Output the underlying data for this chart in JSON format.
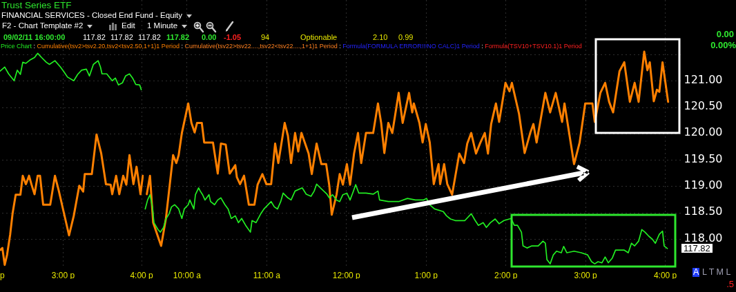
{
  "chart_data": [
    {
      "type": "line",
      "title": "Trust Series ETF",
      "subtitle": "FINANCIAL SERVICES - Closed End Fund - Equity",
      "xlim": [
        14.2,
        16.03
      ],
      "ylim": [
        117.44,
        122.53
      ],
      "xticks": [
        {
          "value": 15,
          "label": "3:00 p"
        },
        {
          "value": 16,
          "label": "4:00 p"
        }
      ],
      "yticks": [
        {
          "value": 118,
          "label": null
        },
        {
          "value": 118.5,
          "label": null
        },
        {
          "value": 119,
          "label": null
        },
        {
          "value": 119.5,
          "label": null
        },
        {
          "value": 120,
          "label": null
        },
        {
          "value": 120.5,
          "label": null
        },
        {
          "value": 121,
          "label": null
        },
        {
          "value": 121.5,
          "label": null
        }
      ],
      "tick_labels": "x",
      "grid": true,
      "series": [
        {
          "color": "#22ee22",
          "x": [
            14.2,
            14.26,
            14.31,
            14.38,
            14.42,
            14.46,
            14.49,
            14.53,
            14.58,
            14.64,
            14.68,
            14.73,
            14.79,
            14.83,
            14.9,
            14.97,
            15.01,
            15.06,
            15.14,
            15.19,
            15.24,
            15.3,
            15.34,
            15.39,
            15.45,
            15.48,
            15.5,
            15.56,
            15.63,
            15.67,
            15.71,
            15.76,
            15.8,
            15.85,
            15.89,
            15.93,
            15.98,
            16.0
          ],
          "values": [
            121.18,
            121.26,
            121.13,
            121.0,
            121.2,
            121.12,
            121.35,
            121.33,
            121.39,
            121.44,
            121.52,
            121.44,
            121.35,
            121.31,
            121.38,
            121.26,
            121.18,
            121.07,
            121.0,
            121.12,
            121.2,
            121.22,
            121.09,
            121.31,
            121.38,
            121.26,
            121.13,
            121.13,
            121.0,
            121.05,
            120.92,
            120.96,
            121.09,
            121.13,
            121.05,
            120.93,
            120.92,
            120.83
          ]
        },
        {
          "color": "#ff8000",
          "x": [
            14.2,
            14.23,
            14.26,
            14.29,
            14.33,
            14.36,
            14.4,
            14.46,
            14.49,
            14.53,
            14.57,
            14.6,
            14.64,
            14.68,
            14.71,
            14.75,
            14.84,
            14.9,
            14.95,
            14.99,
            15.08,
            15.14,
            15.21,
            15.26,
            15.28,
            15.37,
            15.43,
            15.49,
            15.55,
            15.61,
            15.63,
            15.68,
            15.72,
            15.77,
            15.81,
            15.85,
            15.9,
            15.94,
            15.99,
            16.02
          ],
          "values": [
            117.79,
            117.83,
            117.51,
            117.7,
            118.09,
            118.48,
            118.84,
            118.84,
            119.2,
            119.04,
            119.2,
            119.04,
            118.85,
            119.2,
            119.2,
            118.65,
            118.65,
            119.2,
            118.91,
            118.65,
            118.07,
            118.44,
            119.01,
            118.9,
            119.23,
            119.23,
            119.98,
            119.62,
            119.04,
            119.03,
            118.85,
            119.2,
            118.85,
            119.2,
            119.03,
            119.59,
            119.04,
            119.37,
            118.85,
            119.2
          ]
        }
      ]
    },
    {
      "type": "line",
      "xlim": [
        9.46,
        16.19
      ],
      "ylim": [
        117.44,
        122.53
      ],
      "xticks": [
        {
          "value": 10,
          "label": "10:00 a"
        },
        {
          "value": 11,
          "label": "11:00 a"
        },
        {
          "value": 12,
          "label": "12:00 p"
        },
        {
          "value": 13,
          "label": "1:00 p"
        },
        {
          "value": 14,
          "label": "2:00 p"
        },
        {
          "value": 15,
          "label": "3:00 p"
        },
        {
          "value": 16,
          "label": "4:00 p"
        }
      ],
      "yticks": [
        {
          "value": 118,
          "label": "118.00"
        },
        {
          "value": 118.5,
          "label": "118.50"
        },
        {
          "value": 119,
          "label": "119.00"
        },
        {
          "value": 119.5,
          "label": "119.50"
        },
        {
          "value": 120,
          "label": "120.00"
        },
        {
          "value": 120.5,
          "label": "120.50"
        },
        {
          "value": 121,
          "label": "121.00"
        },
        {
          "value": 121.5,
          "label": null
        }
      ],
      "grid": true,
      "legend": "top left",
      "series": [
        {
          "name": "Price Chart",
          "color": "#22ee22",
          "x": [
            9.48,
            9.51,
            9.54,
            9.57,
            9.59,
            9.64,
            9.67,
            9.71,
            9.74,
            9.78,
            9.81,
            9.85,
            9.9,
            9.94,
            9.97,
            10.02,
            10.04,
            10.09,
            10.11,
            10.15,
            10.17,
            10.2,
            10.23,
            10.28,
            10.3,
            10.35,
            10.39,
            10.43,
            10.48,
            10.52,
            10.56,
            10.61,
            10.65,
            10.69,
            10.74,
            10.8,
            10.82,
            10.87,
            10.93,
            10.97,
            11.06,
            11.1,
            11.14,
            11.18,
            11.21,
            11.27,
            11.31,
            11.36,
            11.45,
            11.5,
            11.56,
            11.6,
            11.63,
            11.67,
            11.76,
            11.79,
            11.83,
            11.88,
            11.92,
            11.96,
            12.01,
            12.05,
            12.09,
            12.12,
            12.16,
            12.25,
            12.34,
            12.4,
            12.42,
            12.53,
            12.66,
            12.77,
            12.87,
            12.97,
            13.01,
            13.05,
            13.11,
            13.22,
            13.26,
            13.31,
            13.37,
            13.49,
            13.57,
            13.62,
            13.66,
            13.72,
            13.76,
            13.81,
            13.87,
            13.92,
            13.98,
            14.07,
            14.11,
            14.15,
            14.2,
            14.22,
            14.27,
            14.33,
            14.41,
            14.47,
            14.5,
            14.52,
            14.56,
            14.6,
            14.64,
            14.7,
            14.73,
            14.77,
            14.86,
            14.95,
            15.03,
            15.08,
            15.12,
            15.16,
            15.21,
            15.25,
            15.29,
            15.34,
            15.38,
            15.49,
            15.54,
            15.58,
            15.62,
            15.67,
            15.71,
            15.75,
            15.8,
            15.84,
            15.88,
            15.93,
            15.97,
            15.99,
            16.03
          ],
          "values": [
            118.57,
            118.74,
            118.84,
            118.61,
            118.31,
            118.18,
            118.13,
            118.22,
            118.38,
            118.48,
            118.61,
            118.65,
            118.57,
            118.39,
            118.57,
            118.65,
            118.74,
            118.57,
            118.84,
            118.97,
            118.91,
            118.84,
            118.74,
            118.84,
            118.71,
            118.65,
            118.74,
            118.78,
            118.65,
            118.57,
            118.39,
            118.44,
            118.31,
            118.39,
            118.26,
            118.13,
            118.35,
            118.31,
            118.48,
            118.57,
            118.71,
            118.61,
            118.57,
            118.71,
            118.87,
            118.78,
            118.74,
            118.91,
            118.97,
            118.85,
            118.81,
            118.91,
            119.04,
            118.98,
            118.85,
            118.78,
            118.84,
            118.74,
            118.71,
            118.84,
            118.87,
            118.74,
            118.9,
            119.03,
            118.87,
            118.87,
            118.85,
            118.91,
            118.74,
            118.71,
            118.71,
            118.77,
            118.74,
            118.74,
            118.77,
            118.65,
            118.57,
            118.52,
            118.44,
            118.38,
            118.35,
            118.35,
            118.48,
            118.35,
            118.26,
            118.31,
            118.22,
            118.31,
            118.38,
            118.29,
            118.35,
            118.39,
            118.26,
            118.26,
            118.13,
            117.87,
            117.83,
            117.87,
            117.87,
            117.96,
            117.92,
            117.61,
            117.53,
            117.7,
            117.77,
            117.74,
            117.86,
            117.74,
            117.77,
            117.74,
            117.7,
            117.57,
            117.53,
            117.57,
            117.55,
            117.66,
            117.55,
            117.64,
            117.79,
            117.79,
            117.74,
            117.92,
            117.87,
            117.96,
            118.18,
            118.13,
            118.05,
            118.0,
            117.92,
            118.09,
            118.15,
            117.87,
            117.82
          ]
        },
        {
          "name": "Cumulative(tsv2>tsv2.20,tsv2<tsv2.50,1+1)1 Period",
          "color": "#ff8000",
          "x": [
            9.5,
            9.54,
            9.58,
            9.65,
            9.68,
            9.74,
            9.83,
            9.87,
            9.9,
            9.94,
            10.02,
            10.06,
            10.1,
            10.13,
            10.19,
            10.22,
            10.33,
            10.39,
            10.43,
            10.49,
            10.54,
            10.61,
            10.63,
            10.67,
            10.72,
            10.78,
            10.85,
            10.89,
            10.95,
            11.0,
            11.06,
            11.11,
            11.15,
            11.23,
            11.27,
            11.31,
            11.36,
            11.4,
            11.44,
            11.53,
            11.57,
            11.63,
            11.69,
            11.75,
            11.79,
            11.82,
            11.88,
            11.92,
            11.96,
            12.01,
            12.05,
            12.1,
            12.15,
            12.19,
            12.25,
            12.34,
            12.4,
            12.44,
            12.48,
            12.53,
            12.58,
            12.66,
            12.71,
            12.79,
            12.83,
            12.85,
            12.92,
            12.96,
            13.0,
            13.05,
            13.1,
            13.16,
            13.18,
            13.23,
            13.27,
            13.33,
            13.42,
            13.48,
            13.52,
            13.57,
            13.63,
            13.68,
            13.74,
            13.78,
            13.82,
            13.88,
            13.92,
            14.0,
            14.05,
            14.08,
            14.17,
            14.24,
            14.31,
            14.35,
            14.39,
            14.5,
            14.56,
            14.63,
            14.71,
            14.74,
            14.86,
            14.93,
            15.0,
            15.09,
            15.12,
            15.19,
            15.25,
            15.3,
            15.35,
            15.43,
            15.49,
            15.56,
            15.62,
            15.67,
            15.74,
            15.78,
            15.81,
            15.86,
            15.9,
            15.93,
            15.97,
            16.04
          ],
          "values": [
            118.85,
            119.2,
            118.31,
            118.0,
            117.87,
            118.39,
            119.59,
            119.44,
            119.59,
            120.01,
            120.57,
            120.2,
            120.02,
            120.2,
            120.2,
            119.83,
            119.83,
            119.24,
            119.81,
            119.79,
            119.24,
            119.4,
            119.17,
            119.04,
            119.2,
            118.65,
            118.65,
            119.03,
            119.23,
            119.04,
            119.04,
            119.81,
            119.44,
            120.2,
            119.96,
            119.44,
            120.01,
            119.66,
            120.01,
            119.62,
            119.23,
            119.81,
            119.42,
            119.42,
            119.01,
            118.46,
            118.84,
            119.23,
            119.03,
            119.42,
            119.03,
            119.62,
            120.01,
            119.44,
            120.01,
            120.01,
            120.57,
            120.2,
            119.63,
            120.2,
            120.01,
            120.77,
            120.2,
            120.77,
            120.4,
            120.57,
            120.2,
            119.83,
            120.18,
            119.83,
            119.04,
            119.42,
            119.04,
            119.42,
            119.04,
            118.84,
            119.62,
            119.44,
            119.81,
            120.01,
            119.62,
            119.81,
            120.01,
            119.62,
            120.18,
            120.57,
            120.22,
            120.96,
            120.8,
            120.96,
            120.37,
            119.63,
            120.01,
            120.18,
            119.83,
            120.77,
            120.4,
            120.77,
            120.22,
            120.57,
            119.42,
            119.83,
            120.57,
            120.57,
            120.22,
            120.77,
            120.96,
            120.6,
            120.4,
            121.18,
            121.35,
            120.6,
            120.96,
            120.6,
            121.55,
            121.2,
            121.35,
            120.61,
            120.83,
            120.79,
            121.35,
            120.6
          ]
        }
      ],
      "annotations": [
        "F2 - Chart Template #2",
        "Edit",
        "1 Minute",
        "09/02/11 16:00:00",
        "117.82",
        "117.82",
        "117.82",
        "117.82",
        "0.00",
        "-1.05",
        "94",
        "Optionable",
        "2.10",
        "0.99",
        "0.00",
        "0.00%",
        "Cumulative(tsv22>tsv22....,tsv22<tsv22....,1+1)1 Period",
        "Formula(FORMULA ERROR!!!NO CALC)1 Period",
        "Formula(TSV10+TSV10.1)1 Period",
        ":",
        "p",
        "A",
        "L T M L",
        ".5",
        "117.82"
      ]
    }
  ]
}
